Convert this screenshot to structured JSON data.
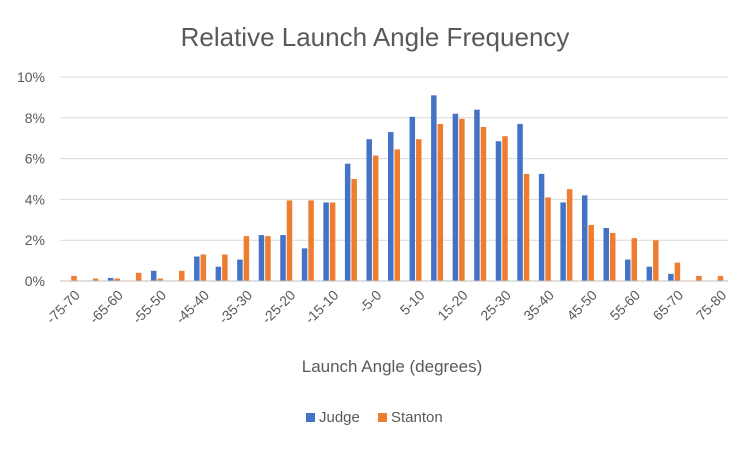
{
  "chart_data": {
    "type": "bar",
    "title": "Relative Launch Angle Frequency",
    "xlabel": "Launch Angle (degrees)",
    "ylabel": "",
    "ylim": [
      0,
      10
    ],
    "y_ticks": [
      "0%",
      "2%",
      "4%",
      "6%",
      "8%",
      "10%"
    ],
    "grid": true,
    "legend_position": "bottom",
    "categories": [
      "-75-70",
      "-70-65",
      "-65-60",
      "-60-55",
      "-55-50",
      "-50-45",
      "-45-40",
      "-40-35",
      "-35-30",
      "-30-25",
      "-25-20",
      "-20-15",
      "-15-10",
      "-10-5",
      "-5-0",
      "0-5",
      "5-10",
      "10-15",
      "15-20",
      "20-25",
      "25-30",
      "30-35",
      "35-40",
      "40-45",
      "45-50",
      "50-55",
      "55-60",
      "60-65",
      "65-70",
      "70-75",
      "75-80"
    ],
    "visible_tick_labels": [
      "-75-70",
      "-65-60",
      "-55-50",
      "-45-40",
      "-35-30",
      "-25-20",
      "-15-10",
      "-5-0",
      "5-10",
      "15-20",
      "25-30",
      "35-40",
      "45-50",
      "55-60",
      "65-70",
      "75-80"
    ],
    "series": [
      {
        "name": "Judge",
        "color": "#4472C4",
        "values": [
          0,
          0,
          0.15,
          0,
          0.5,
          0,
          1.2,
          0.7,
          1.05,
          2.25,
          2.25,
          1.6,
          3.85,
          5.75,
          6.95,
          7.3,
          8.05,
          9.1,
          8.2,
          8.4,
          6.85,
          7.7,
          5.25,
          3.85,
          4.2,
          2.6,
          1.05,
          0.7,
          0.35,
          0,
          0
        ]
      },
      {
        "name": "Stanton",
        "color": "#ED7D31",
        "values": [
          0.25,
          0.12,
          0.12,
          0.4,
          0.12,
          0.5,
          1.3,
          1.3,
          2.2,
          2.2,
          3.95,
          3.95,
          3.85,
          5.0,
          6.15,
          6.45,
          6.95,
          7.7,
          7.95,
          7.55,
          7.1,
          5.25,
          4.1,
          4.5,
          2.75,
          2.35,
          2.1,
          2.0,
          0.9,
          0.25,
          0.25
        ]
      }
    ]
  }
}
